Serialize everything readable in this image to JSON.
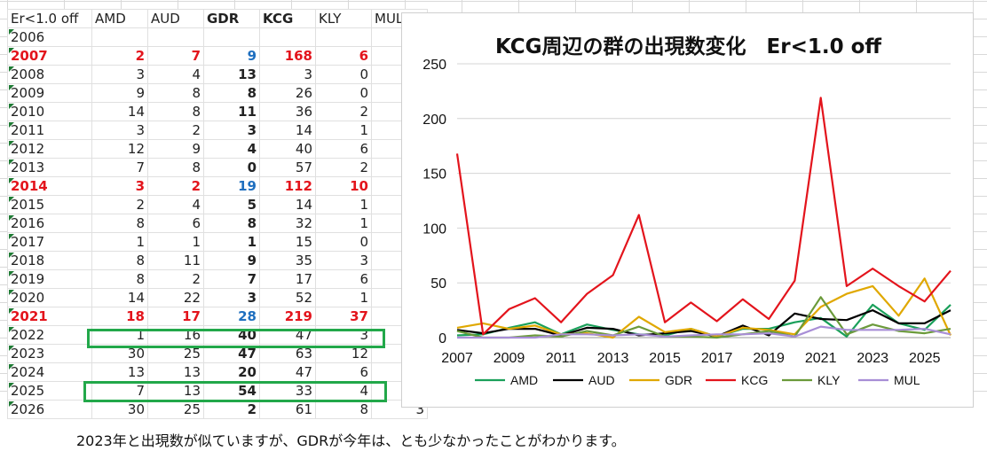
{
  "sheet": {
    "corner_label": "Er<1.0 off",
    "headers": [
      "AMD",
      "AUD",
      "GDR",
      "KCG",
      "KLY",
      "MUL"
    ],
    "rows": [
      {
        "year": "2006",
        "values": [
          "",
          "",
          "",
          "",
          "",
          ""
        ],
        "highlight": false
      },
      {
        "year": "2007",
        "values": [
          "2",
          "7",
          "9",
          "168",
          "6",
          "0"
        ],
        "highlight": true
      },
      {
        "year": "2008",
        "values": [
          "3",
          "4",
          "13",
          "3",
          "0",
          "0"
        ],
        "highlight": false
      },
      {
        "year": "2009",
        "values": [
          "9",
          "8",
          "8",
          "26",
          "0",
          "0"
        ],
        "highlight": false
      },
      {
        "year": "2010",
        "values": [
          "14",
          "8",
          "11",
          "36",
          "2",
          "0"
        ],
        "highlight": false
      },
      {
        "year": "2011",
        "values": [
          "3",
          "2",
          "3",
          "14",
          "1",
          "3"
        ],
        "highlight": false
      },
      {
        "year": "2012",
        "values": [
          "12",
          "9",
          "4",
          "40",
          "6",
          "3"
        ],
        "highlight": false
      },
      {
        "year": "2013",
        "values": [
          "7",
          "8",
          "0",
          "57",
          "2",
          "2"
        ],
        "highlight": false
      },
      {
        "year": "2014",
        "values": [
          "3",
          "2",
          "19",
          "112",
          "10",
          "3"
        ],
        "highlight": true
      },
      {
        "year": "2015",
        "values": [
          "2",
          "4",
          "5",
          "14",
          "1",
          "1"
        ],
        "highlight": false
      },
      {
        "year": "2016",
        "values": [
          "8",
          "6",
          "8",
          "32",
          "1",
          "2"
        ],
        "highlight": false
      },
      {
        "year": "2017",
        "values": [
          "1",
          "1",
          "1",
          "15",
          "0",
          "3"
        ],
        "highlight": false
      },
      {
        "year": "2018",
        "values": [
          "8",
          "11",
          "9",
          "35",
          "3",
          "3"
        ],
        "highlight": false
      },
      {
        "year": "2019",
        "values": [
          "8",
          "2",
          "7",
          "17",
          "6",
          "4"
        ],
        "highlight": false
      },
      {
        "year": "2020",
        "values": [
          "14",
          "22",
          "3",
          "52",
          "1",
          "1"
        ],
        "highlight": false
      },
      {
        "year": "2021",
        "values": [
          "18",
          "17",
          "28",
          "219",
          "37",
          "10"
        ],
        "highlight": true
      },
      {
        "year": "2022",
        "values": [
          "1",
          "16",
          "40",
          "47",
          "3",
          "7"
        ],
        "highlight": false
      },
      {
        "year": "2023",
        "values": [
          "30",
          "25",
          "47",
          "63",
          "12",
          "7"
        ],
        "highlight": false
      },
      {
        "year": "2024",
        "values": [
          "13",
          "13",
          "20",
          "47",
          "6",
          "7"
        ],
        "highlight": false
      },
      {
        "year": "2025",
        "values": [
          "7",
          "13",
          "54",
          "33",
          "4",
          "8"
        ],
        "highlight": false
      },
      {
        "year": "2026",
        "values": [
          "30",
          "25",
          "2",
          "61",
          "8",
          "3"
        ],
        "highlight": false
      }
    ]
  },
  "chart_data": {
    "type": "line",
    "title": "KCG周辺の群の出現数変化　Er<1.0 off",
    "x": [
      2007,
      2008,
      2009,
      2010,
      2011,
      2012,
      2013,
      2014,
      2015,
      2016,
      2017,
      2018,
      2019,
      2020,
      2021,
      2022,
      2023,
      2024,
      2025,
      2026
    ],
    "x_tick_labels": [
      "2007",
      "2009",
      "2011",
      "2013",
      "2015",
      "2017",
      "2019",
      "2021",
      "2023",
      "2025"
    ],
    "y_ticks": [
      "0",
      "50",
      "100",
      "150",
      "200",
      "250"
    ],
    "ylim": [
      0,
      250
    ],
    "grid": true,
    "legend": "bottom",
    "series": [
      {
        "name": "AMD",
        "color": "#1aa05a",
        "values": [
          2,
          3,
          9,
          14,
          3,
          12,
          7,
          3,
          2,
          8,
          1,
          8,
          8,
          14,
          18,
          1,
          30,
          13,
          7,
          30
        ]
      },
      {
        "name": "AUD",
        "color": "#000000",
        "values": [
          7,
          4,
          8,
          8,
          2,
          9,
          8,
          2,
          4,
          6,
          1,
          11,
          2,
          22,
          17,
          16,
          25,
          13,
          13,
          25
        ]
      },
      {
        "name": "GDR",
        "color": "#e0a800",
        "values": [
          9,
          13,
          8,
          11,
          3,
          4,
          0,
          19,
          5,
          8,
          1,
          9,
          7,
          3,
          28,
          40,
          47,
          20,
          54,
          2
        ]
      },
      {
        "name": "KCG",
        "color": "#e3141c",
        "values": [
          168,
          3,
          26,
          36,
          14,
          40,
          57,
          112,
          14,
          32,
          15,
          35,
          17,
          52,
          219,
          47,
          63,
          47,
          33,
          61
        ]
      },
      {
        "name": "KLY",
        "color": "#6b9a3a",
        "values": [
          6,
          0,
          0,
          2,
          1,
          6,
          2,
          10,
          1,
          1,
          0,
          3,
          6,
          1,
          37,
          3,
          12,
          6,
          4,
          8
        ]
      },
      {
        "name": "MUL",
        "color": "#a88ed6",
        "values": [
          0,
          0,
          0,
          0,
          3,
          3,
          2,
          3,
          1,
          2,
          3,
          3,
          4,
          1,
          10,
          7,
          7,
          7,
          8,
          3
        ]
      }
    ]
  },
  "caption": "2023年と出現数が似ていますが、GDRが今年は、とも少なかったことがわかります。"
}
